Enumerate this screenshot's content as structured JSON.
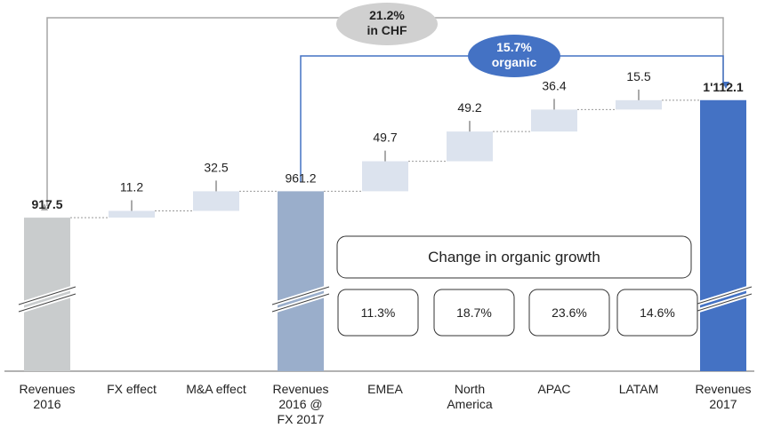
{
  "chart_data": {
    "type": "waterfall",
    "categories": [
      "Revenues\n2016",
      "FX effect",
      "M&A effect",
      "Revenues\n2016 @\nFX 2017",
      "EMEA",
      "North\nAmerica",
      "APAC",
      "LATAM",
      "Revenues\n2017"
    ],
    "values": [
      917.5,
      11.2,
      32.5,
      961.2,
      49.7,
      49.2,
      36.4,
      15.5,
      1112.1
    ],
    "value_labels": [
      "917.5",
      "11.2",
      "32.5",
      "961.2",
      "49.7",
      "49.2",
      "36.4",
      "15.5",
      "1'112.1"
    ],
    "bar_kinds": [
      "total",
      "delta",
      "delta",
      "total",
      "delta",
      "delta",
      "delta",
      "delta",
      "total"
    ],
    "colors": [
      "#c9cccd",
      "#dce3ee",
      "#dce3ee",
      "#9aaecb",
      "#dce3ee",
      "#dce3ee",
      "#dce3ee",
      "#dce3ee",
      "#4472c4"
    ],
    "ylim": [
      900,
      1125
    ],
    "annotations": {
      "chf_growth": "21.2%\nin CHF",
      "organic_growth": "15.7%\norganic",
      "organic_box": "Change in organic growth",
      "regional_growth": [
        "11.3%",
        "18.7%",
        "23.6%",
        "14.6%"
      ]
    }
  }
}
